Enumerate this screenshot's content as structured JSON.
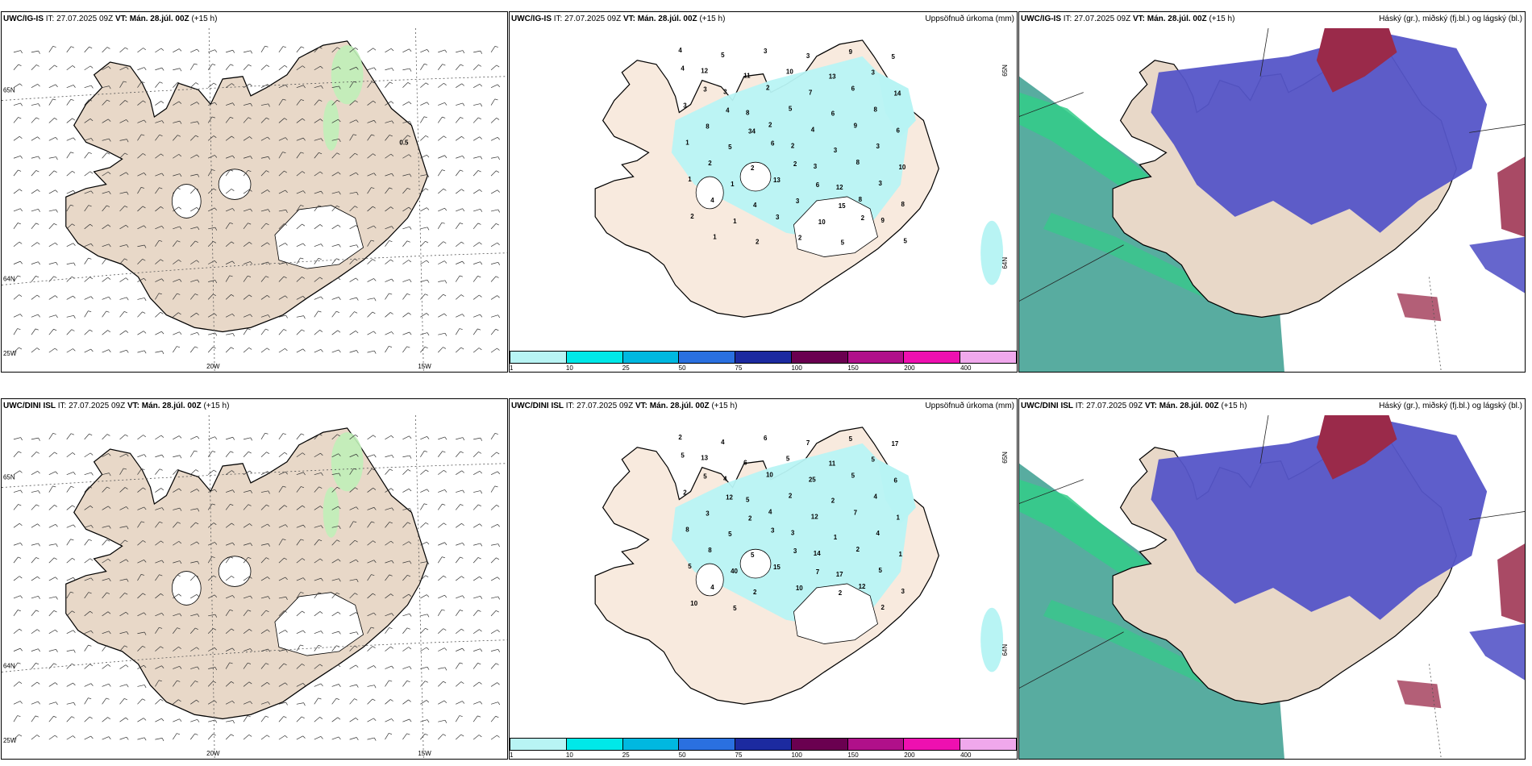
{
  "rows": [
    {
      "model": "UWC/IG-IS",
      "it_label": "IT: 27.07.2025 09Z",
      "vt_label": "VT: Mán. 28.júl. 00Z",
      "lead": "(+15 h)",
      "wind_panel": {
        "labels": [
          "65N",
          "64N",
          "25W",
          "20W",
          "15W"
        ],
        "value_label": "0.5"
      },
      "precip_panel": {
        "title_right": "Uppsöfnuð úrkoma (mm)",
        "labels": [
          "65N",
          "64N"
        ],
        "values": [
          "4",
          "5",
          "3",
          "3",
          "9",
          "5",
          "12",
          "11",
          "10",
          "13",
          "3",
          "4",
          "3",
          "2",
          "7",
          "6",
          "14",
          "3",
          "8",
          "5",
          "6",
          "8",
          "3",
          "4",
          "2",
          "4",
          "9",
          "6",
          "8",
          "34",
          "2",
          "3",
          "3",
          "1",
          "5",
          "6",
          "3",
          "8",
          "10",
          "2",
          "2",
          "2",
          "12",
          "3",
          "1",
          "1",
          "13",
          "6",
          "8",
          "8",
          "4",
          "4",
          "3",
          "15",
          "9",
          "2",
          "1",
          "3",
          "10",
          "2",
          "5",
          "1",
          "2",
          "2",
          "5"
        ]
      },
      "cloud_panel": {
        "title_right": "Háský (gr.), miðský (fj.bl.) og lágský (bl.)"
      }
    },
    {
      "model": "UWC/DINI ISL",
      "it_label": "IT: 27.07.2025 09Z",
      "vt_label": "VT: Mán. 28.júl. 00Z",
      "lead": "(+15 h)",
      "wind_panel": {
        "labels": [
          "65N",
          "64N",
          "25W",
          "20W",
          "15W"
        ]
      },
      "precip_panel": {
        "title_right": "Uppsöfnuð úrkoma (mm)",
        "labels": [
          "65N",
          "64N"
        ],
        "values": [
          "2",
          "4",
          "6",
          "7",
          "5",
          "17",
          "13",
          "6",
          "5",
          "11",
          "5",
          "5",
          "4",
          "10",
          "25",
          "5",
          "6",
          "5",
          "5",
          "2",
          "2",
          "4",
          "2",
          "12",
          "4",
          "12",
          "7",
          "1",
          "3",
          "2",
          "3",
          "1",
          "4",
          "8",
          "5",
          "3",
          "14",
          "2",
          "1",
          "8",
          "5",
          "3",
          "17",
          "5",
          "5",
          "40",
          "15",
          "7",
          "12",
          "3",
          "4",
          "2",
          "10",
          "2",
          "2",
          "10",
          "5"
        ]
      },
      "cloud_panel": {
        "title_right": "Háský (gr.), miðský (fj.bl.) og lágský (bl.)"
      }
    }
  ],
  "colorbar": {
    "colors": [
      "#b8f4f4",
      "#00e8e8",
      "#00b8e0",
      "#2a70e0",
      "#1c2aa0",
      "#6a0050",
      "#b0108a",
      "#ee10b0",
      "#f0a8ec"
    ],
    "ticks": [
      "1",
      "10",
      "25",
      "50",
      "75",
      "100",
      "150",
      "200",
      "400"
    ]
  },
  "colors": {
    "land": "#e8d8c8",
    "land_precip": "#f8eade",
    "precip_light": "#b8f4f4",
    "wind_green": "#c0f0b8",
    "sea_teal": "#3b9d8f",
    "high_green": "#33cc88",
    "mid_blue": "#5555c8",
    "low_red": "#9a2a4a"
  }
}
